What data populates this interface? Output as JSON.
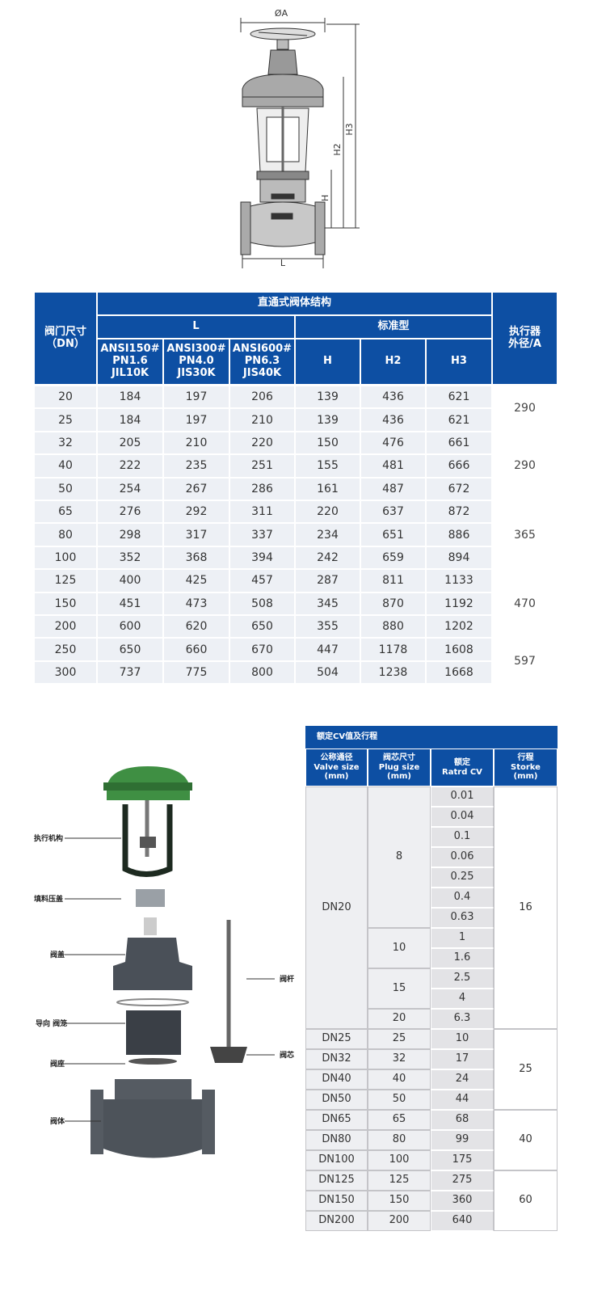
{
  "drawing": {
    "labels": {
      "diameter": "ØA",
      "h3": "H3",
      "h2": "H2",
      "h": "H",
      "l": "L"
    }
  },
  "dimension_table": {
    "dn_header": [
      "阀门尺寸",
      "（DN）"
    ],
    "title": "直通式阀体结构",
    "l_header": "L",
    "standard_header": "标准型",
    "actuator_header": [
      "执行器",
      "外径/A"
    ],
    "columns": [
      [
        "ANSI150#",
        "PN1.6",
        "JIL10K"
      ],
      [
        "ANSI300#",
        "PN4.0",
        "JIS30K"
      ],
      [
        "ANSI600#",
        "PN6.3",
        "JIS40K"
      ],
      [
        "H"
      ],
      [
        "H2"
      ],
      [
        "H3"
      ]
    ],
    "rows": [
      [
        "20",
        "184",
        "197",
        "206",
        "139",
        "436",
        "621"
      ],
      [
        "25",
        "184",
        "197",
        "210",
        "139",
        "436",
        "621"
      ],
      [
        "32",
        "205",
        "210",
        "220",
        "150",
        "476",
        "661"
      ],
      [
        "40",
        "222",
        "235",
        "251",
        "155",
        "481",
        "666"
      ],
      [
        "50",
        "254",
        "267",
        "286",
        "161",
        "487",
        "672"
      ],
      [
        "65",
        "276",
        "292",
        "311",
        "220",
        "637",
        "872"
      ],
      [
        "80",
        "298",
        "317",
        "337",
        "234",
        "651",
        "886"
      ],
      [
        "100",
        "352",
        "368",
        "394",
        "242",
        "659",
        "894"
      ],
      [
        "125",
        "400",
        "425",
        "457",
        "287",
        "811",
        "1133"
      ],
      [
        "150",
        "451",
        "473",
        "508",
        "345",
        "870",
        "1192"
      ],
      [
        "200",
        "600",
        "620",
        "650",
        "355",
        "880",
        "1202"
      ],
      [
        "250",
        "650",
        "660",
        "670",
        "447",
        "1178",
        "1608"
      ],
      [
        "300",
        "737",
        "775",
        "800",
        "504",
        "1238",
        "1668"
      ]
    ],
    "actuator": [
      "290",
      "290",
      "365",
      "470",
      "597"
    ]
  },
  "cv_table": {
    "title": "额定CV值及行程",
    "headers": [
      [
        "公称通径",
        "Valve size",
        "(mm)"
      ],
      [
        "阀芯尺寸",
        "Plug size",
        "(mm)"
      ],
      [
        "额定",
        "Ratrd CV"
      ],
      [
        "行程",
        "Storke",
        "(mm)"
      ]
    ],
    "valve_sizes": [
      "DN20",
      "DN25",
      "DN32",
      "DN40",
      "DN50",
      "DN65",
      "DN80",
      "DN100",
      "DN125",
      "DN150",
      "DN200"
    ],
    "plug_sizes": [
      "8",
      "10",
      "15",
      "20",
      "25",
      "32",
      "40",
      "50",
      "65",
      "80",
      "100",
      "125",
      "150",
      "200"
    ],
    "cv": [
      "0.01",
      "0.04",
      "0.1",
      "0.06",
      "0.25",
      "0.4",
      "0.63",
      "1",
      "1.6",
      "2.5",
      "4",
      "6.3",
      "10",
      "17",
      "24",
      "44",
      "68",
      "99",
      "175",
      "275",
      "360",
      "640"
    ],
    "stroke": [
      "16",
      "25",
      "40",
      "60"
    ]
  },
  "exploded_view": {
    "labels": [
      "执行机构",
      "填料压盖",
      "阀盖",
      "导向 阀笼",
      "阀座",
      "阀体",
      "阀杆",
      "阀芯"
    ]
  }
}
